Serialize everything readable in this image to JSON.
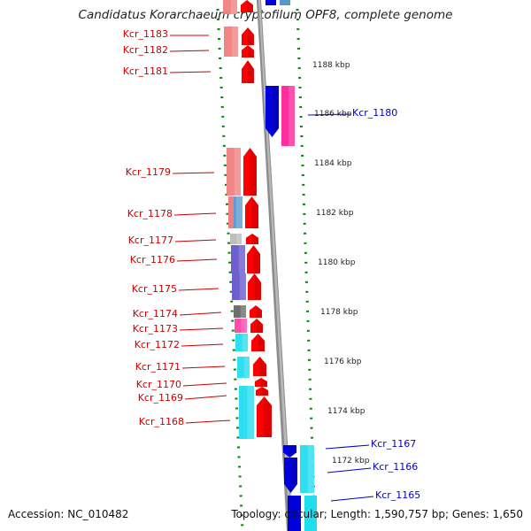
{
  "title": "Candidatus Korarchaeum cryptofilum OPF8, complete genome",
  "footer": {
    "accession_label": "Accession: NC_010482",
    "topology_label": "Topology: circular; Length: 1,590,757 bp; Genes: 1,650"
  },
  "colors": {
    "gene_label_left": "#cc0000",
    "gene_label_right": "#0000cc",
    "backbone": "#8c8c8c",
    "ruler_dash": "#008800",
    "scale_text": "#222222"
  },
  "scale_ticks": [
    "1188 kbp",
    "1186 kbp",
    "1184 kbp",
    "1182 kbp",
    "1180 kbp",
    "1178 kbp",
    "1176 kbp",
    "1174 kbp",
    "1172 kbp"
  ],
  "genes_left": [
    {
      "name": "Kcr_1183",
      "color": "#f08080"
    },
    {
      "name": "Kcr_1182",
      "color": "#f08080"
    },
    {
      "name": "Kcr_1181",
      "color": "#ff0000"
    },
    {
      "name": "Kcr_1179",
      "color": "#f08080"
    },
    {
      "name": "Kcr_1178",
      "color": "#5599cc"
    },
    {
      "name": "Kcr_1177",
      "color": "#bbbbbb"
    },
    {
      "name": "Kcr_1176",
      "color": "#6655cc"
    },
    {
      "name": "Kcr_1175",
      "color": "#6655cc"
    },
    {
      "name": "Kcr_1174",
      "color": "#666666"
    },
    {
      "name": "Kcr_1173",
      "color": "#ff44aa"
    },
    {
      "name": "Kcr_1172",
      "color": "#22ddee"
    },
    {
      "name": "Kcr_1171",
      "color": "#22ddee"
    },
    {
      "name": "Kcr_1170",
      "color": "#ff0000"
    },
    {
      "name": "Kcr_1169",
      "color": "#ff0000"
    },
    {
      "name": "Kcr_1168",
      "color": "#22ddee"
    }
  ],
  "genes_right": [
    {
      "name": "Kcr_1180",
      "color": "#ff2299"
    },
    {
      "name": "Kcr_1167",
      "color": "#22ddee"
    },
    {
      "name": "Kcr_1166",
      "color": "#0000dd"
    },
    {
      "name": "Kcr_1165",
      "color": "#0000dd"
    }
  ]
}
